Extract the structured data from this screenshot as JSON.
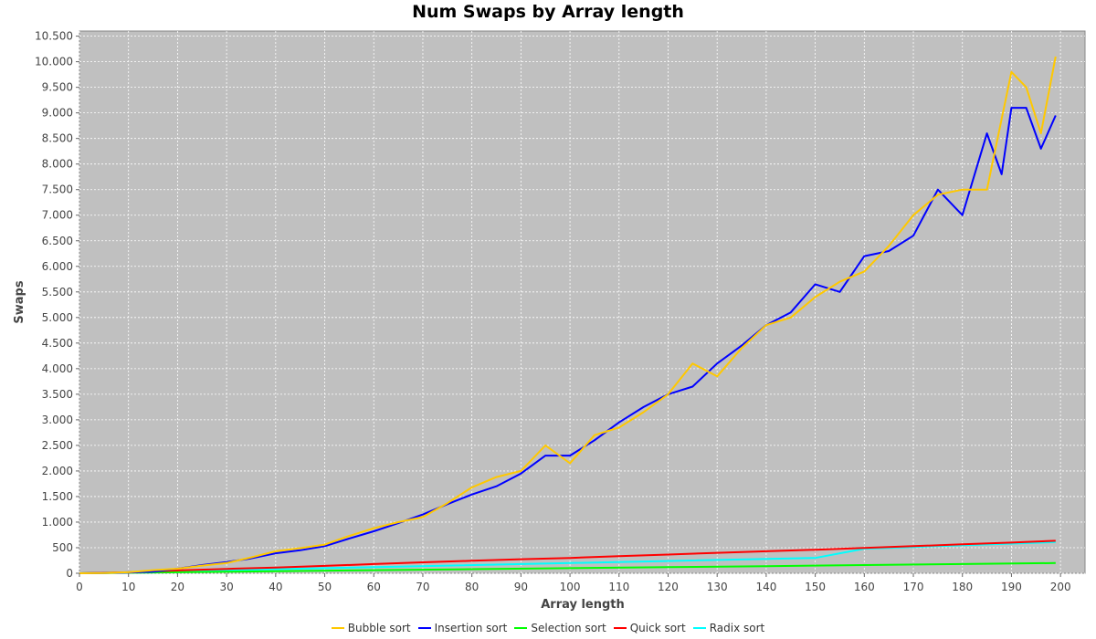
{
  "chart_data": {
    "type": "line",
    "title": "Num Swaps by Array length",
    "xlabel": "Array length",
    "ylabel": "Swaps",
    "xlim": [
      0,
      205
    ],
    "ylim": [
      0,
      10600
    ],
    "x_ticks": [
      0,
      10,
      20,
      30,
      40,
      50,
      60,
      70,
      80,
      90,
      100,
      110,
      120,
      130,
      140,
      150,
      160,
      170,
      180,
      190,
      200
    ],
    "y_ticks": [
      0,
      500,
      1000,
      1500,
      2000,
      2500,
      3000,
      3500,
      4000,
      4500,
      5000,
      5500,
      6000,
      6500,
      7000,
      7500,
      8000,
      8500,
      9000,
      9500,
      10000,
      10500
    ],
    "y_tick_labels": [
      "0",
      "500",
      "1.000",
      "1.500",
      "2.000",
      "2.500",
      "3.000",
      "3.500",
      "4.000",
      "4.500",
      "5.000",
      "5.500",
      "6.000",
      "6.500",
      "7.000",
      "7.500",
      "8.000",
      "8.500",
      "9.000",
      "9.500",
      "10.000",
      "10.500"
    ],
    "grid": true,
    "legend_position": "bottom",
    "plot_background": "#c0c0c0",
    "series": [
      {
        "name": "Bubble sort",
        "color": "#ffc800",
        "x": [
          0,
          5,
          10,
          15,
          20,
          25,
          30,
          35,
          40,
          45,
          50,
          55,
          60,
          65,
          70,
          75,
          80,
          85,
          90,
          95,
          100,
          105,
          110,
          115,
          120,
          125,
          130,
          135,
          140,
          145,
          150,
          155,
          160,
          165,
          170,
          175,
          180,
          185,
          190,
          193,
          196,
          199
        ],
        "y": [
          0,
          5,
          20,
          60,
          90,
          150,
          200,
          310,
          430,
          490,
          560,
          730,
          880,
          1000,
          1100,
          1370,
          1680,
          1880,
          2000,
          2500,
          2150,
          2700,
          2850,
          3150,
          3500,
          4100,
          3850,
          4400,
          4850,
          5000,
          5400,
          5700,
          5900,
          6400,
          7000,
          7400,
          7500,
          7500,
          9800,
          9500,
          8600,
          10100
        ]
      },
      {
        "name": "Insertion sort",
        "color": "#0000ff",
        "x": [
          0,
          5,
          10,
          15,
          20,
          25,
          30,
          35,
          40,
          45,
          50,
          55,
          60,
          65,
          70,
          75,
          80,
          85,
          90,
          95,
          100,
          105,
          110,
          115,
          120,
          125,
          130,
          135,
          140,
          145,
          150,
          155,
          160,
          165,
          170,
          175,
          180,
          185,
          188,
          190,
          193,
          196,
          199
        ],
        "y": [
          0,
          5,
          15,
          30,
          90,
          160,
          220,
          290,
          390,
          450,
          530,
          680,
          820,
          980,
          1150,
          1350,
          1540,
          1700,
          1950,
          2300,
          2300,
          2600,
          2950,
          3250,
          3500,
          3650,
          4100,
          4450,
          4850,
          5100,
          5650,
          5500,
          6200,
          6300,
          6600,
          7500,
          7000,
          8600,
          7800,
          9100,
          9100,
          8300,
          8950
        ]
      },
      {
        "name": "Selection sort",
        "color": "#00ff00",
        "x": [
          0,
          20,
          40,
          60,
          80,
          100,
          120,
          140,
          160,
          180,
          199
        ],
        "y": [
          0,
          20,
          40,
          60,
          80,
          100,
          120,
          140,
          160,
          180,
          199
        ]
      },
      {
        "name": "Quick sort",
        "color": "#ff0000",
        "x": [
          0,
          10,
          20,
          30,
          40,
          50,
          60,
          70,
          80,
          90,
          100,
          110,
          120,
          130,
          140,
          150,
          160,
          170,
          180,
          190,
          195,
          199
        ],
        "y": [
          0,
          20,
          55,
          85,
          110,
          145,
          180,
          215,
          245,
          275,
          300,
          335,
          365,
          400,
          430,
          460,
          495,
          530,
          565,
          600,
          620,
          635
        ]
      },
      {
        "name": "Radix sort",
        "color": "#00ffff",
        "x": [
          0,
          50,
          100,
          150,
          160,
          199
        ],
        "y": [
          0,
          100,
          200,
          300,
          480,
          610
        ]
      }
    ]
  }
}
